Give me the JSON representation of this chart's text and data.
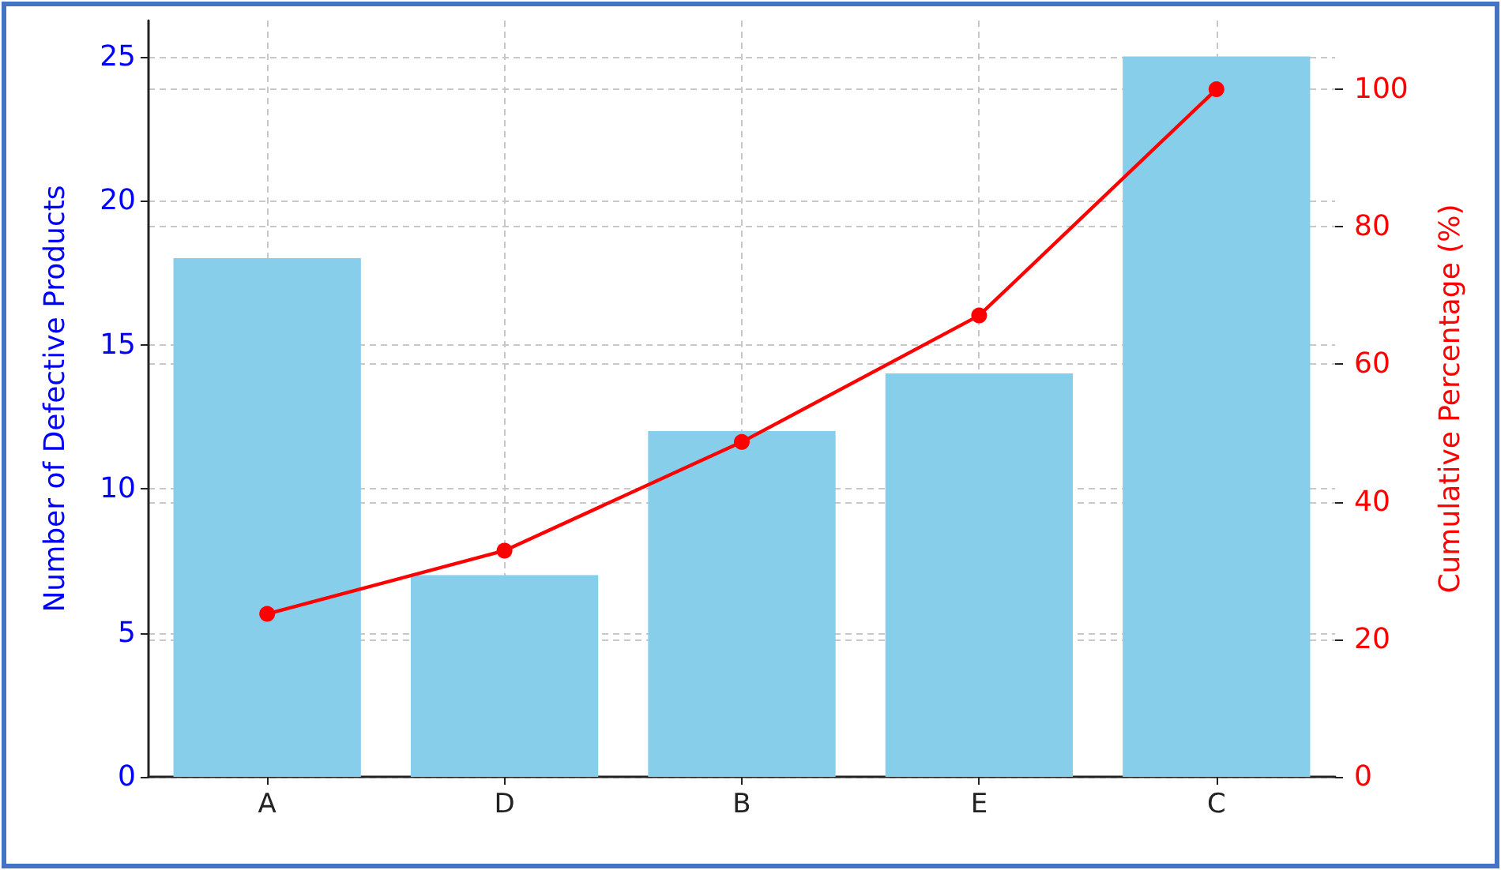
{
  "chart_data": {
    "type": "bar",
    "categories": [
      "A",
      "D",
      "B",
      "E",
      "C"
    ],
    "series": [
      {
        "color": "#87ceeb",
        "values": [
          18,
          7,
          12,
          14,
          25
        ]
      },
      {
        "type": "line",
        "axis": "y2",
        "color": "#ff0000",
        "values": [
          23.7,
          32.9,
          48.7,
          67.1,
          100
        ]
      }
    ],
    "ylabel": "Number of Defective Products",
    "y2label": "Cumulative Percentage (%)",
    "ylim": [
      0,
      26.25
    ],
    "yticks": [
      0,
      5,
      10,
      15,
      20,
      25
    ],
    "y2lim": [
      0,
      110
    ],
    "y2ticks": [
      0,
      20,
      40,
      60,
      80,
      100
    ],
    "grid": true,
    "marker": "circle",
    "line_style": "solid"
  }
}
